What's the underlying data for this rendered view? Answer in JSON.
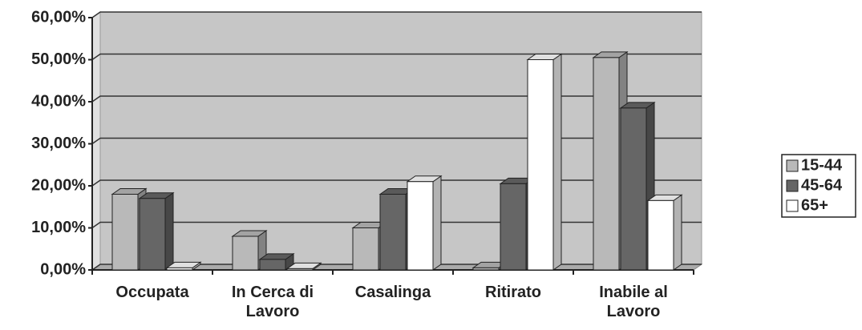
{
  "chart_data": {
    "type": "bar3d",
    "categories": [
      "Occupata",
      "In Cerca di Lavoro",
      "Casalinga",
      "Ritirato",
      "Inabile al Lavoro"
    ],
    "series": [
      {
        "name": "15-44",
        "color": "#b9b9b9",
        "values": [
          18,
          8,
          10,
          0.5,
          50.5
        ]
      },
      {
        "name": "45-64",
        "color": "#666666",
        "values": [
          17,
          2.5,
          18,
          20.5,
          38.5
        ]
      },
      {
        "name": "65+",
        "color": "#ffffff",
        "values": [
          0.5,
          0.3,
          21,
          50,
          16.5
        ]
      }
    ],
    "ylim": [
      0,
      60
    ],
    "yticks": [
      {
        "value": 0,
        "label": "0,00%"
      },
      {
        "value": 10,
        "label": "10,00%"
      },
      {
        "value": 20,
        "label": "20,00%"
      },
      {
        "value": 30,
        "label": "30,00%"
      },
      {
        "value": 40,
        "label": "40,00%"
      },
      {
        "value": 50,
        "label": "50,00%"
      },
      {
        "value": 60,
        "label": "60,00%"
      }
    ],
    "grid": true
  }
}
